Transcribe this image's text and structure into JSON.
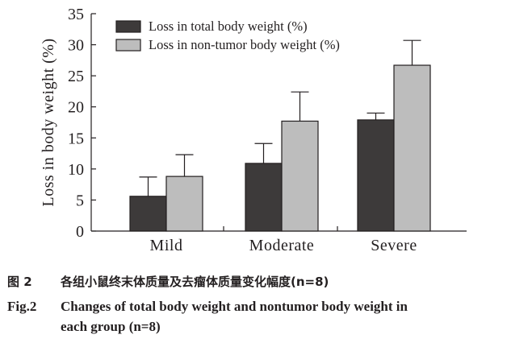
{
  "chart_data": {
    "type": "bar",
    "categories": [
      "Mild",
      "Moderate",
      "Severe"
    ],
    "series": [
      {
        "name": "Loss in total body weight (%)",
        "values": [
          5.6,
          10.9,
          17.9
        ],
        "errors": [
          3.1,
          3.2,
          1.1
        ],
        "color": "#3d3a3a"
      },
      {
        "name": "Loss in non-tumor body weight (%)",
        "values": [
          8.8,
          17.7,
          26.7
        ],
        "errors": [
          3.5,
          4.7,
          4.0
        ],
        "color": "#bdbdbd"
      }
    ],
    "xlabel": "",
    "ylabel": "Loss in body weight (%)",
    "ylim": [
      0,
      35
    ],
    "yticks": [
      0,
      5,
      10,
      15,
      20,
      25,
      30,
      35
    ],
    "grid": false,
    "legend": "top-left",
    "error_bars": "upper"
  },
  "caption": {
    "cn_label": "图 2",
    "cn_text": "各组小鼠终末体质量及去瘤体质量变化幅度(n=8)",
    "en_label": "Fig.2",
    "en_text_line1": "Changes of total body weight and nontumor body weight in",
    "en_text_line2": "each group (n=8)"
  }
}
